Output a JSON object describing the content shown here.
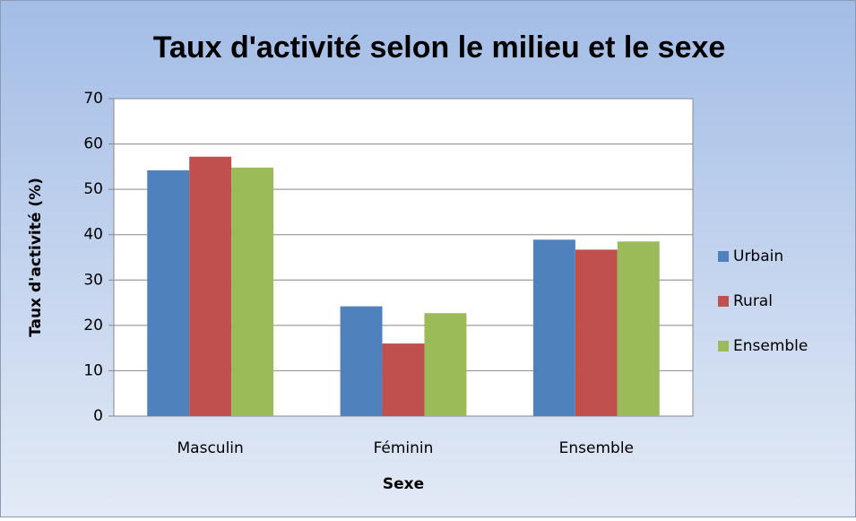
{
  "chart_data": {
    "type": "bar",
    "title": "Taux d'activité selon le milieu et le sexe",
    "x_label": "Sexe",
    "y_label": "Taux d'activité (%)",
    "categories": [
      "Masculin",
      "Féminin",
      "Ensemble"
    ],
    "series": [
      {
        "name": "Urbain",
        "color": "#4f81bd",
        "values": [
          54.2,
          24.2,
          38.9
        ]
      },
      {
        "name": "Rural",
        "color": "#c0504d",
        "values": [
          57.2,
          16.0,
          36.7
        ]
      },
      {
        "name": "Ensemble",
        "color": "#9bbb59",
        "values": [
          54.8,
          22.7,
          38.5
        ]
      }
    ],
    "ylim": [
      0,
      70
    ],
    "yticks": [
      0,
      10,
      20,
      30,
      40,
      50,
      60,
      70
    ],
    "grid": true,
    "legend": "right"
  }
}
